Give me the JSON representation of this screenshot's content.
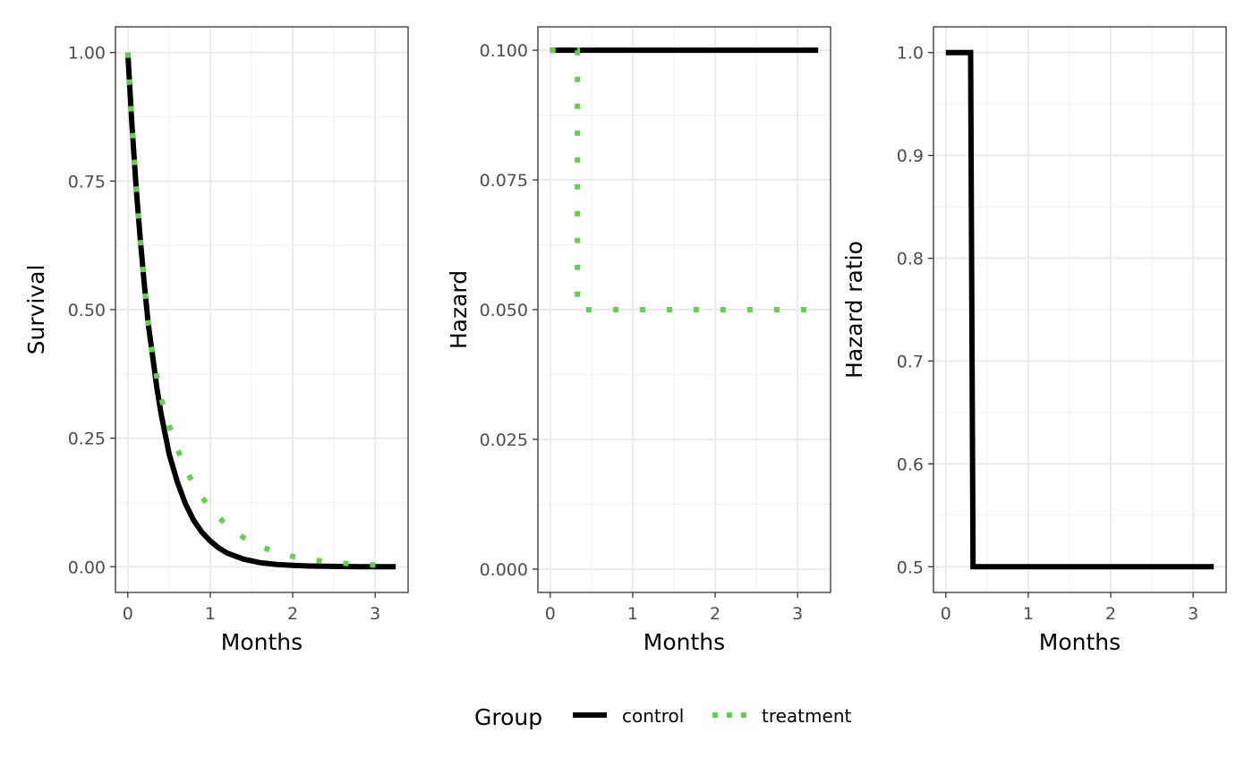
{
  "colors": {
    "control": "#000000",
    "treatment": "#61D04F",
    "grid_major": "#EBEBEB",
    "grid_minor": "#F3F3F3",
    "panel_border": "#333333",
    "tick_text": "#4D4D4D"
  },
  "legend": {
    "title": "Group",
    "position": "bottom",
    "items": [
      {
        "label": "control",
        "color": "#000000",
        "linetype": "solid"
      },
      {
        "label": "treatment",
        "color": "#61D04F",
        "linetype": "dotted"
      }
    ]
  },
  "chart_data": [
    {
      "type": "line",
      "xlabel": "Months",
      "ylabel": "Survival",
      "xlim": [
        -0.15,
        3.4
      ],
      "ylim": [
        -0.05,
        1.05
      ],
      "x_ticks": [
        0,
        1,
        2,
        3
      ],
      "x_tick_labels": [
        "0",
        "1",
        "2",
        "3"
      ],
      "y_ticks": [
        0,
        0.25,
        0.5,
        0.75,
        1
      ],
      "y_tick_labels": [
        "0.00",
        "0.25",
        "0.50",
        "0.75",
        "1.00"
      ],
      "grid": true,
      "series": [
        {
          "name": "control",
          "linetype": "solid",
          "x": [
            0,
            0.05,
            0.1,
            0.15,
            0.2,
            0.25,
            0.3,
            0.35,
            0.4,
            0.5,
            0.6,
            0.7,
            0.8,
            0.9,
            1.0,
            1.1,
            1.2,
            1.4,
            1.6,
            1.8,
            2.0,
            2.2,
            2.4,
            2.6,
            2.8,
            3.0,
            3.25
          ],
          "y": [
            1.0,
            0.86,
            0.74,
            0.64,
            0.55,
            0.47,
            0.41,
            0.35,
            0.3,
            0.22,
            0.165,
            0.122,
            0.09,
            0.067,
            0.05,
            0.037,
            0.027,
            0.015,
            0.008,
            0.0045,
            0.0025,
            0.0014,
            0.0008,
            0.0004,
            0.0002,
            0.0001,
            0.0
          ]
        },
        {
          "name": "treatment",
          "linetype": "dotted",
          "x": [
            0,
            0.05,
            0.1,
            0.15,
            0.2,
            0.25,
            0.3,
            0.4,
            0.5,
            0.6,
            0.7,
            0.8,
            0.9,
            1.0,
            1.2,
            1.4,
            1.6,
            1.8,
            2.0,
            2.2,
            2.4,
            2.6,
            2.8,
            3.0,
            3.25
          ],
          "y": [
            1.0,
            0.86,
            0.74,
            0.64,
            0.55,
            0.47,
            0.41,
            0.33,
            0.275,
            0.23,
            0.19,
            0.16,
            0.135,
            0.115,
            0.08,
            0.057,
            0.04,
            0.028,
            0.02,
            0.014,
            0.01,
            0.007,
            0.005,
            0.003,
            0.002
          ]
        }
      ]
    },
    {
      "type": "line",
      "xlabel": "Months",
      "ylabel": "Hazard",
      "xlim": [
        -0.15,
        3.4
      ],
      "ylim": [
        -0.0045,
        0.1045
      ],
      "x_ticks": [
        0,
        1,
        2,
        3
      ],
      "x_tick_labels": [
        "0",
        "1",
        "2",
        "3"
      ],
      "y_ticks": [
        0,
        0.025,
        0.05,
        0.075,
        0.1
      ],
      "y_tick_labels": [
        "0.000",
        "0.025",
        "0.050",
        "0.075",
        "0.100"
      ],
      "grid": true,
      "series": [
        {
          "name": "control",
          "linetype": "solid",
          "x": [
            0,
            3.25
          ],
          "y": [
            0.1,
            0.1
          ]
        },
        {
          "name": "treatment",
          "linetype": "dotted",
          "x": [
            0,
            0.33,
            0.33,
            3.25
          ],
          "y": [
            0.1,
            0.1,
            0.05,
            0.05
          ]
        }
      ]
    },
    {
      "type": "line",
      "xlabel": "Months",
      "ylabel": "Hazard ratio",
      "xlim": [
        -0.15,
        3.4
      ],
      "ylim": [
        0.475,
        1.025
      ],
      "x_ticks": [
        0,
        1,
        2,
        3
      ],
      "x_tick_labels": [
        "0",
        "1",
        "2",
        "3"
      ],
      "y_ticks": [
        0.5,
        0.6,
        0.7,
        0.8,
        0.9,
        1.0
      ],
      "y_tick_labels": [
        "0.5",
        "0.6",
        "0.7",
        "0.8",
        "0.9",
        "1.0"
      ],
      "grid": true,
      "series": [
        {
          "name": "control",
          "linetype": "solid",
          "x": [
            0,
            0.3,
            0.33,
            3.25
          ],
          "y": [
            1.0,
            1.0,
            0.5,
            0.5
          ]
        }
      ]
    }
  ]
}
